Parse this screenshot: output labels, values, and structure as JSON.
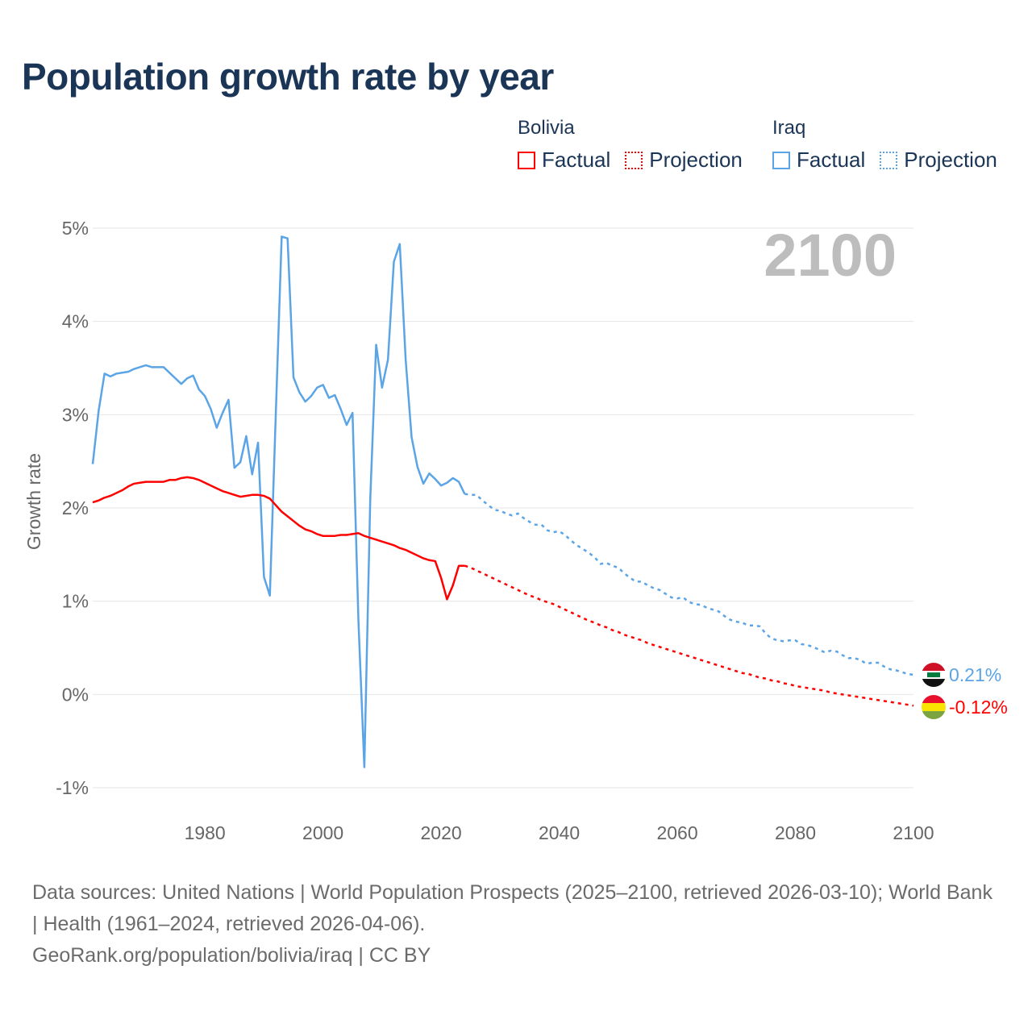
{
  "title": "Population growth rate by year",
  "legend": {
    "groups": [
      {
        "name": "Bolivia",
        "color": "#ff0000",
        "factual_label": "Factual",
        "projection_label": "Projection"
      },
      {
        "name": "Iraq",
        "color": "#5ba4e6",
        "factual_label": "Factual",
        "projection_label": "Projection"
      }
    ]
  },
  "year_watermark": "2100",
  "footer": {
    "sources": "Data sources: United Nations | World Population Prospects (2025–2100, retrieved 2026-03-10); World Bank | Health (1961–2024, retrieved 2026-04-06).",
    "credit": "GeoRank.org/population/bolivia/iraq | CC BY"
  },
  "chart_data": {
    "type": "line",
    "title": "Population growth rate by year",
    "xlabel": "",
    "ylabel": "Growth rate",
    "xlim": [
      1961,
      2100
    ],
    "ylim": [
      -1,
      5
    ],
    "xticks": [
      1980,
      2000,
      2020,
      2040,
      2060,
      2080,
      2100
    ],
    "xtick_labels": [
      "1980",
      "2000",
      "2020",
      "2040",
      "2060",
      "2080",
      "2100"
    ],
    "yticks": [
      -1,
      0,
      1,
      2,
      3,
      4,
      5
    ],
    "ytick_labels": [
      "-1%",
      "0%",
      "1%",
      "2%",
      "3%",
      "4%",
      "5%"
    ],
    "grid": true,
    "legend_position": "top-right",
    "series": [
      {
        "name": "Bolivia",
        "color": "#ff0000",
        "end_label": "-0.12%",
        "factual_start": 1961,
        "factual": [
          2.06,
          2.08,
          2.11,
          2.13,
          2.16,
          2.19,
          2.23,
          2.26,
          2.27,
          2.28,
          2.28,
          2.28,
          2.28,
          2.3,
          2.3,
          2.32,
          2.33,
          2.32,
          2.3,
          2.27,
          2.24,
          2.21,
          2.18,
          2.16,
          2.14,
          2.12,
          2.13,
          2.14,
          2.14,
          2.13,
          2.1,
          2.03,
          1.96,
          1.91,
          1.86,
          1.81,
          1.77,
          1.75,
          1.72,
          1.7,
          1.7,
          1.7,
          1.71,
          1.71,
          1.72,
          1.73,
          1.7,
          1.68,
          1.66,
          1.64,
          1.62,
          1.6,
          1.57,
          1.55,
          1.52,
          1.49,
          1.46,
          1.44,
          1.43,
          1.25,
          1.02,
          1.17,
          1.38,
          1.38
        ],
        "projection_start": 2025,
        "projection": [
          1.36,
          1.33,
          1.3,
          1.27,
          1.24,
          1.21,
          1.18,
          1.15,
          1.12,
          1.09,
          1.06,
          1.04,
          1.01,
          0.99,
          0.97,
          0.94,
          0.91,
          0.88,
          0.85,
          0.82,
          0.79,
          0.77,
          0.74,
          0.72,
          0.69,
          0.67,
          0.64,
          0.62,
          0.6,
          0.58,
          0.55,
          0.53,
          0.51,
          0.49,
          0.47,
          0.45,
          0.43,
          0.41,
          0.39,
          0.37,
          0.35,
          0.33,
          0.31,
          0.29,
          0.27,
          0.25,
          0.23,
          0.22,
          0.2,
          0.18,
          0.17,
          0.15,
          0.14,
          0.12,
          0.11,
          0.09,
          0.08,
          0.07,
          0.06,
          0.05,
          0.04,
          0.02,
          0.01,
          0.0,
          -0.01,
          -0.02,
          -0.03,
          -0.04,
          -0.05,
          -0.06,
          -0.07,
          -0.08,
          -0.09,
          -0.1,
          -0.11,
          -0.12
        ]
      },
      {
        "name": "Iraq",
        "color": "#5ba4e6",
        "end_label": "0.21%",
        "factual_start": 1961,
        "factual": [
          2.47,
          3.04,
          3.44,
          3.41,
          3.44,
          3.45,
          3.46,
          3.49,
          3.51,
          3.53,
          3.51,
          3.51,
          3.51,
          3.45,
          3.39,
          3.33,
          3.39,
          3.42,
          3.27,
          3.2,
          3.06,
          2.86,
          3.02,
          3.16,
          2.43,
          2.49,
          2.77,
          2.36,
          2.7,
          1.26,
          1.06,
          3.0,
          4.91,
          4.89,
          3.4,
          3.24,
          3.14,
          3.2,
          3.29,
          3.32,
          3.18,
          3.21,
          3.06,
          2.89,
          3.02,
          0.79,
          -0.78,
          2.09,
          3.75,
          3.29,
          3.59,
          4.64,
          4.83,
          3.59,
          2.76,
          2.44,
          2.26,
          2.37,
          2.31,
          2.24,
          2.27,
          2.32,
          2.28,
          2.15
        ],
        "projection_start": 2025,
        "projection": [
          2.14,
          2.14,
          2.08,
          2.03,
          1.98,
          1.97,
          1.94,
          1.92,
          1.94,
          1.89,
          1.85,
          1.82,
          1.82,
          1.76,
          1.74,
          1.75,
          1.71,
          1.65,
          1.6,
          1.56,
          1.52,
          1.47,
          1.4,
          1.41,
          1.38,
          1.36,
          1.3,
          1.25,
          1.21,
          1.21,
          1.17,
          1.14,
          1.12,
          1.08,
          1.04,
          1.03,
          1.04,
          0.99,
          0.97,
          0.96,
          0.93,
          0.91,
          0.89,
          0.84,
          0.8,
          0.78,
          0.77,
          0.74,
          0.74,
          0.73,
          0.65,
          0.6,
          0.58,
          0.57,
          0.58,
          0.58,
          0.54,
          0.53,
          0.51,
          0.48,
          0.45,
          0.47,
          0.46,
          0.42,
          0.39,
          0.39,
          0.37,
          0.33,
          0.34,
          0.34,
          0.3,
          0.27,
          0.26,
          0.24,
          0.22,
          0.21
        ]
      }
    ]
  }
}
